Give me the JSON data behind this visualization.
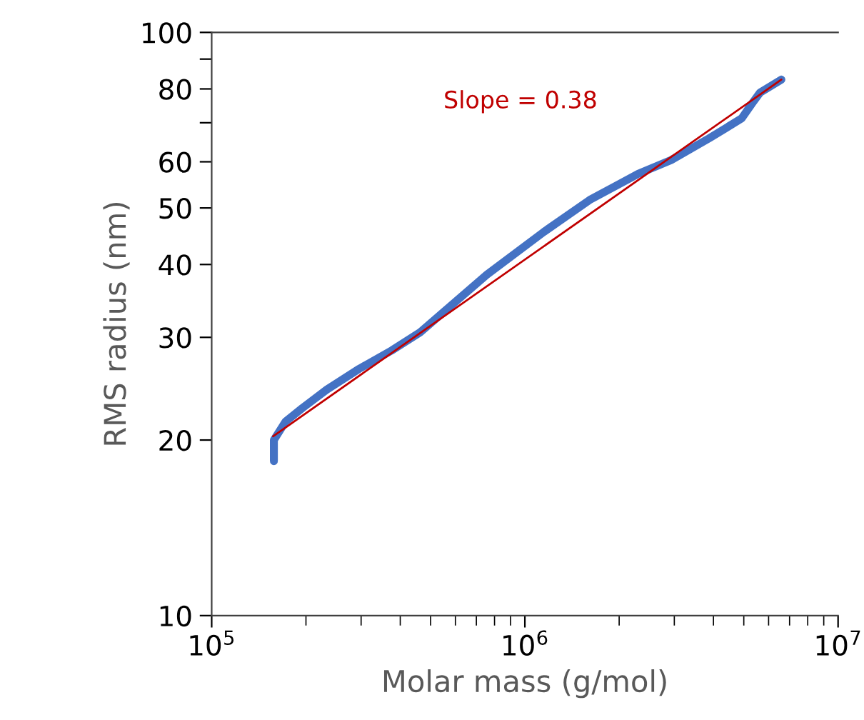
{
  "chart_data": {
    "type": "line",
    "xlabel": "Molar mass (g/mol)",
    "ylabel": "RMS radius (nm)",
    "log": "xy",
    "grid": false,
    "legend": false,
    "xlim": [
      100000,
      10000000
    ],
    "xticks": [
      {
        "value": 100000,
        "label": "10$^{5}$"
      },
      {
        "value": 1000000,
        "label": "10$^{6}$"
      },
      {
        "value": 10000000,
        "label": "10$^{7}$"
      }
    ],
    "ylim": [
      10,
      100
    ],
    "yticks": [
      10,
      20,
      30,
      40,
      50,
      60,
      {
        "value": 70,
        "label": null
      },
      80,
      {
        "value": 90,
        "label": null
      },
      100
    ],
    "annotations": [
      "Slope = 0.38"
    ],
    "series": [
      {
        "color": "#4472c4",
        "x": [
          158000,
          158000,
          172000,
          195000,
          233000,
          296000,
          376000,
          463000,
          755000,
          1150000,
          1610000,
          2300000,
          2930000,
          3870000,
          4920000,
          5300000,
          5640000,
          6590000
        ],
        "values": [
          18.4,
          20.0,
          21.5,
          22.7,
          24.4,
          26.5,
          28.5,
          30.6,
          38.4,
          45.5,
          51.6,
          57.2,
          60.4,
          65.8,
          71.2,
          75.4,
          78.9,
          83.0
        ]
      },
      {
        "color": "#c00000",
        "x": [
          157000,
          6590000
        ],
        "values": [
          20.3,
          83.0
        ]
      }
    ]
  }
}
